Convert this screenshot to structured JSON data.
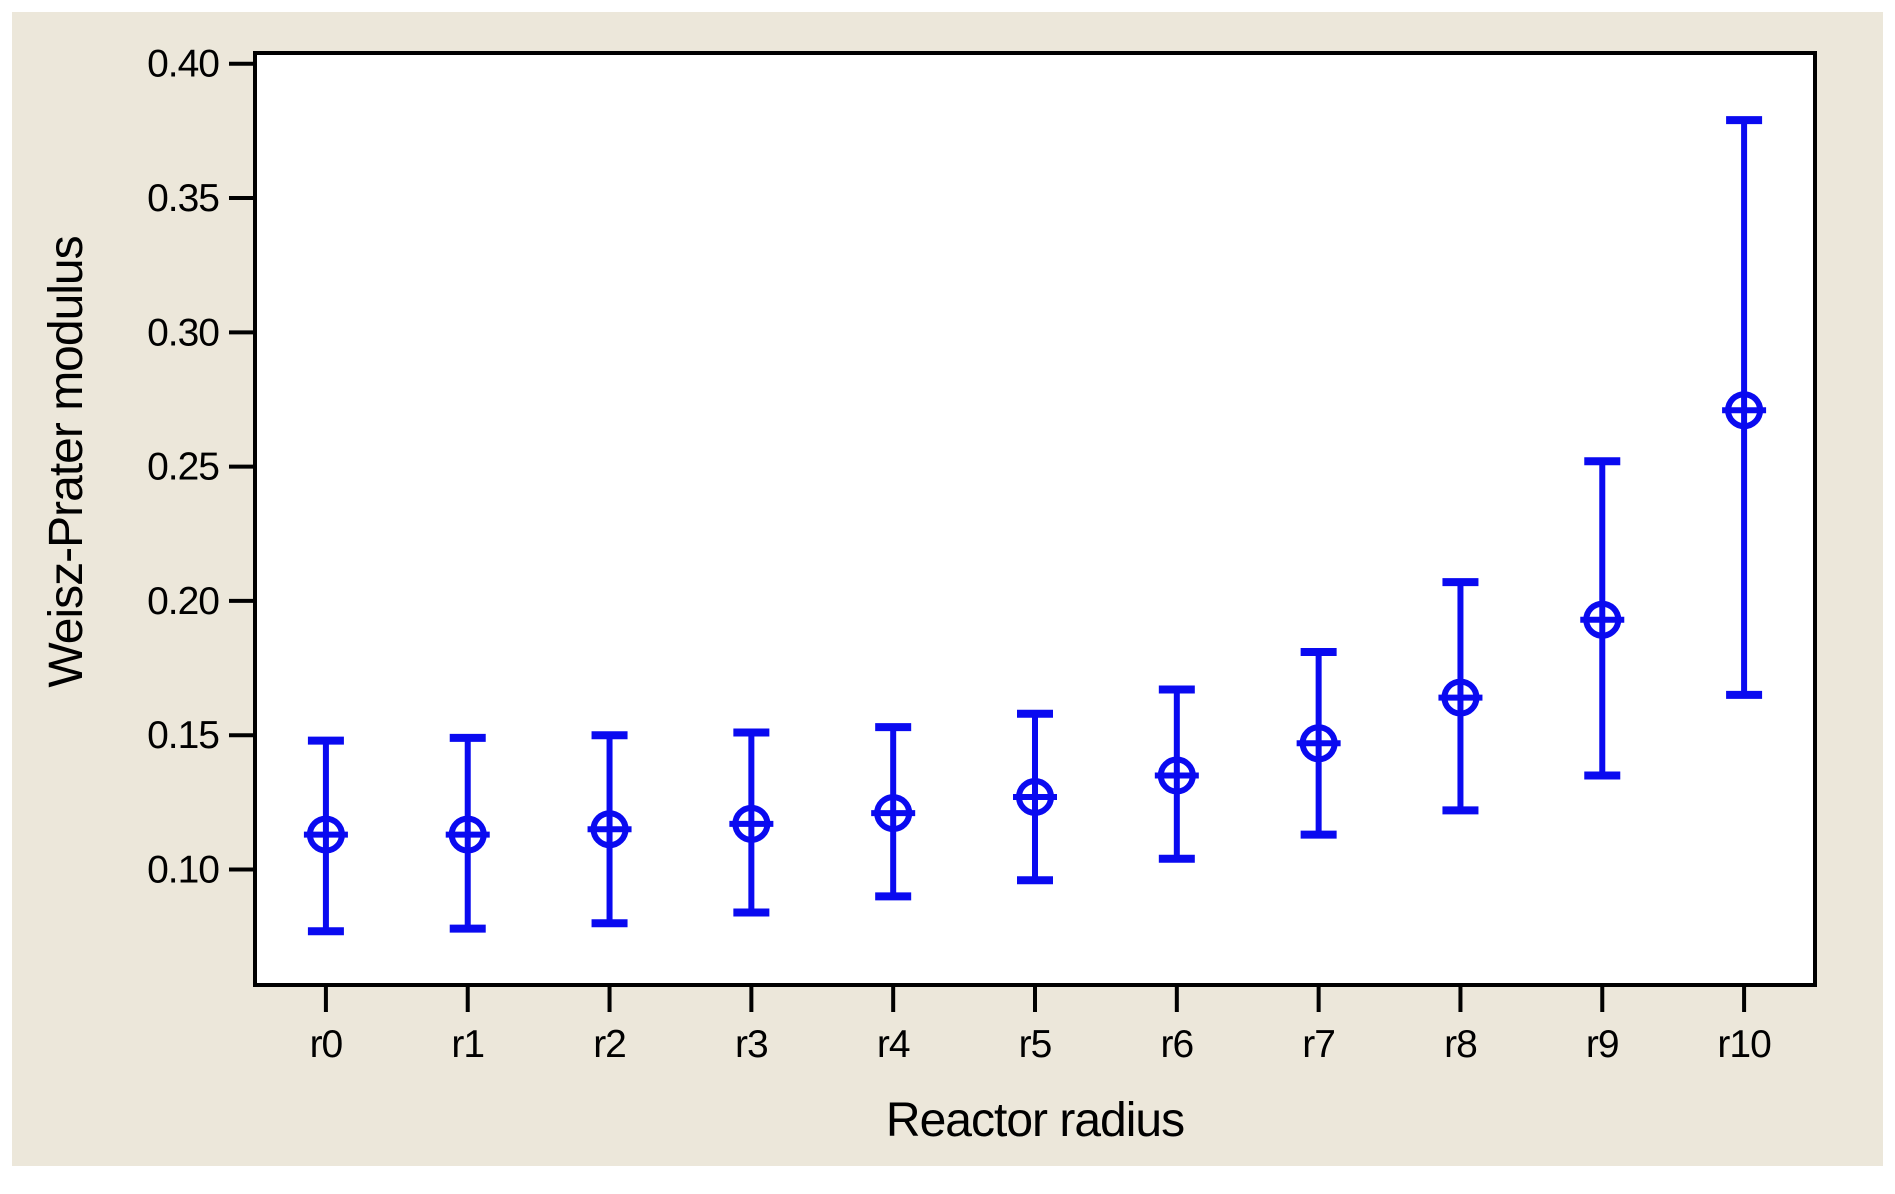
{
  "figure": {
    "background_color": "#FFFFFF",
    "canvas_color": "#ECE7DA",
    "plot_bg_color": "#FFFFFF",
    "frame_color": "#000000",
    "series_color": "#0A0AF0",
    "text_color": "#000000"
  },
  "chart_data": {
    "type": "scatter",
    "subtype": "interval-plot-with-error-bars",
    "title": "",
    "xlabel": "Reactor radius",
    "ylabel": "Weisz-Prater modulus",
    "categories": [
      "r0",
      "r1",
      "r2",
      "r3",
      "r4",
      "r5",
      "r6",
      "r7",
      "r8",
      "r9",
      "r10"
    ],
    "series": [
      {
        "name": "Weisz-Prater modulus",
        "marker": "circle-plus",
        "means": [
          0.113,
          0.113,
          0.115,
          0.117,
          0.121,
          0.127,
          0.135,
          0.147,
          0.164,
          0.193,
          0.271
        ],
        "ci_low": [
          0.077,
          0.078,
          0.08,
          0.084,
          0.09,
          0.096,
          0.104,
          0.113,
          0.122,
          0.135,
          0.165
        ],
        "ci_high": [
          0.148,
          0.149,
          0.15,
          0.151,
          0.153,
          0.158,
          0.167,
          0.181,
          0.207,
          0.252,
          0.379
        ]
      }
    ],
    "y_ticks": [
      0.1,
      0.15,
      0.2,
      0.25,
      0.3,
      0.35,
      0.4
    ],
    "y_tick_labels": [
      "0.10",
      "0.15",
      "0.20",
      "0.25",
      "0.30",
      "0.35",
      "0.40"
    ],
    "ylim": [
      0.057,
      0.404
    ],
    "grid": false,
    "legend": "none"
  }
}
